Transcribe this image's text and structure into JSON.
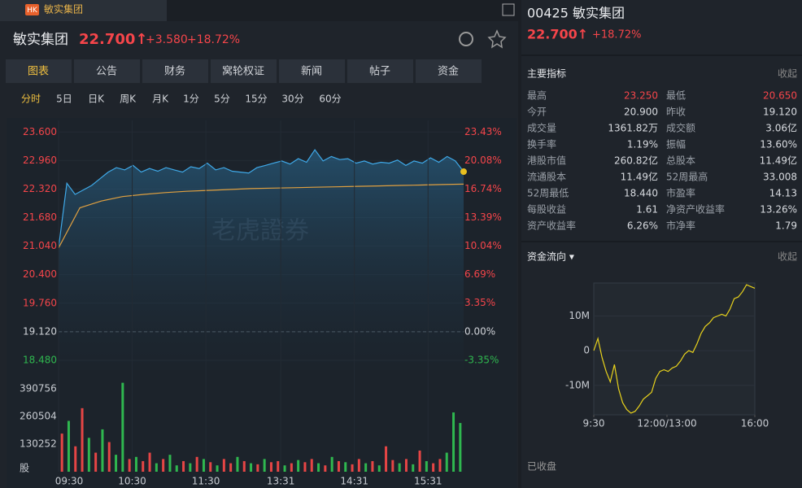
{
  "tab": {
    "badge": "HK",
    "name": "敏实集团"
  },
  "header": {
    "name": "敏实集团",
    "price": "22.700↑",
    "change": "+3.580",
    "percent": "+18.72%"
  },
  "tabs": [
    "图表",
    "公告",
    "财务",
    "窝轮权证",
    "新闻",
    "帖子",
    "资金"
  ],
  "periods": [
    "分时",
    "5日",
    "日K",
    "周K",
    "月K",
    "1分",
    "5分",
    "15分",
    "30分",
    "60分"
  ],
  "chart_data": [
    {
      "type": "line",
      "watermark": "老虎證券",
      "series": [
        {
          "color": "#3fa9e8",
          "values": [
            21.0,
            22.45,
            22.2,
            22.3,
            22.4,
            22.55,
            22.7,
            22.8,
            22.75,
            22.85,
            22.7,
            22.78,
            22.72,
            22.8,
            22.75,
            22.7,
            22.82,
            22.78,
            22.9,
            22.75,
            22.8,
            22.72,
            22.7,
            22.68,
            22.8,
            22.85,
            22.9,
            22.95,
            22.88,
            23.0,
            22.92,
            23.2,
            22.95,
            23.05,
            22.98,
            23.0,
            22.9,
            22.95,
            22.88,
            22.92,
            22.9,
            22.97,
            22.85,
            22.95,
            22.9,
            23.02,
            22.92,
            23.05,
            22.95,
            22.71
          ]
        },
        {
          "color": "#e0a040",
          "values": [
            21.0,
            21.9,
            22.05,
            22.15,
            22.2,
            22.24,
            22.27,
            22.29,
            22.31,
            22.33,
            22.34,
            22.35,
            22.36,
            22.37,
            22.38,
            22.39,
            22.4,
            22.41,
            22.42,
            22.43
          ]
        }
      ],
      "prev_close": 19.12,
      "xlim": [
        0,
        330
      ],
      "xticks": [
        {
          "value": 0,
          "label": "09:30"
        },
        {
          "value": 60,
          "label": "10:30"
        },
        {
          "value": 120,
          "label": "11:30"
        },
        {
          "value": 181,
          "label": "13:31"
        },
        {
          "value": 241,
          "label": "14:31"
        },
        {
          "value": 301,
          "label": "15:31"
        }
      ],
      "ylim": [
        18.26,
        23.86
      ],
      "yticks": [
        {
          "value": 23.6,
          "label": "23.600"
        },
        {
          "value": 22.96,
          "label": "22.960"
        },
        {
          "value": 22.32,
          "label": "22.320"
        },
        {
          "value": 21.68,
          "label": "21.680"
        },
        {
          "value": 21.04,
          "label": "21.040"
        },
        {
          "value": 20.4,
          "label": "20.400"
        },
        {
          "value": 19.76,
          "label": "19.760"
        },
        {
          "value": 19.12,
          "label": "19.120"
        },
        {
          "value": 18.48,
          "label": "18.480"
        }
      ],
      "y2lim": [
        -4.5,
        24.79
      ],
      "y2ticks": [
        {
          "value": 23.43,
          "label": "23.43%"
        },
        {
          "value": 20.08,
          "label": "20.08%"
        },
        {
          "value": 16.74,
          "label": "16.74%"
        },
        {
          "value": 13.39,
          "label": "13.39%"
        },
        {
          "value": 10.04,
          "label": "10.04%"
        },
        {
          "value": 6.69,
          "label": "6.69%"
        },
        {
          "value": 3.35,
          "label": "3.35%"
        },
        {
          "value": 0,
          "label": "0.00%"
        },
        {
          "value": -3.35,
          "label": "-3.35%"
        }
      ]
    },
    {
      "type": "bar",
      "values": [
        180000,
        240000,
        120000,
        300000,
        160000,
        90000,
        200000,
        140000,
        80000,
        420000,
        60000,
        70000,
        50000,
        90000,
        40000,
        60000,
        80000,
        30000,
        50000,
        40000,
        70000,
        60000,
        45000,
        30000,
        60000,
        40000,
        70000,
        50000,
        40000,
        35000,
        60000,
        45000,
        50000,
        30000,
        40000,
        55000,
        45000,
        60000,
        40000,
        30000,
        70000,
        50000,
        45000,
        35000,
        60000,
        40000,
        50000,
        30000,
        120000,
        55000,
        40000,
        60000,
        35000,
        100000,
        50000,
        40000,
        60000,
        90000,
        280000,
        230000
      ],
      "colors": [
        "#e64545",
        "#2fb74f",
        "#e64545",
        "#e64545",
        "#2fb74f",
        "#e64545",
        "#2fb74f",
        "#e64545",
        "#2fb74f",
        "#2fb74f",
        "#e64545",
        "#2fb74f",
        "#e64545",
        "#e64545",
        "#2fb74f",
        "#e64545",
        "#2fb74f",
        "#2fb74f",
        "#e64545",
        "#2fb74f",
        "#e64545",
        "#2fb74f",
        "#e64545",
        "#2fb74f",
        "#e64545",
        "#e64545",
        "#2fb74f",
        "#e64545",
        "#2fb74f",
        "#e64545",
        "#2fb74f",
        "#e64545",
        "#e64545",
        "#2fb74f",
        "#e64545",
        "#2fb74f",
        "#e64545",
        "#e64545",
        "#2fb74f",
        "#e64545",
        "#2fb74f",
        "#e64545",
        "#2fb74f",
        "#e64545",
        "#e64545",
        "#2fb74f",
        "#e64545",
        "#2fb74f",
        "#e64545",
        "#e64545",
        "#2fb74f",
        "#e64545",
        "#2fb74f",
        "#e64545",
        "#2fb74f",
        "#e64545",
        "#e64545",
        "#2fb74f",
        "#2fb74f",
        "#2fb74f"
      ],
      "ylim": [
        0,
        430000
      ],
      "yticks": [
        390756,
        260504,
        130252,
        {
          "value": 0,
          "label": "股"
        }
      ]
    },
    {
      "type": "line",
      "series": [
        {
          "color": "#e8d21c",
          "values": [
            0,
            3500000,
            -2000000,
            -6000000,
            -9000000,
            -4000000,
            -11000000,
            -15000000,
            -17000000,
            -18000000,
            -17500000,
            -16000000,
            -14000000,
            -13000000,
            -12000000,
            -8000000,
            -6000000,
            -5500000,
            -6000000,
            -5000000,
            -4500000,
            -3000000,
            -1000000,
            0,
            -500000,
            2000000,
            5000000,
            7000000,
            8000000,
            9500000,
            10000000,
            10500000,
            10000000,
            12000000,
            15000000,
            15500000,
            17000000,
            19000000,
            18500000,
            18000000
          ]
        }
      ],
      "xlim": [
        0,
        330
      ],
      "xticks": [
        {
          "value": 0,
          "label": "9:30"
        },
        {
          "value": 150,
          "label": "12:00/13:00"
        },
        {
          "value": 330,
          "label": "16:00"
        }
      ],
      "ylim": [
        -18500000,
        19500000
      ],
      "yticks": [
        {
          "value": 10000000,
          "label": "10M"
        },
        0,
        {
          "value": -10000000,
          "label": "-10M"
        }
      ]
    }
  ],
  "quote": {
    "code_name": "00425 敏实集团",
    "price": "22.700↑",
    "percent": "+18.72%"
  },
  "indicators": {
    "title": "主要指标",
    "toggle": "收起",
    "rows": [
      [
        "最高",
        "23.250",
        "最低",
        "20.650"
      ],
      [
        "今开",
        "20.900",
        "昨收",
        "19.120"
      ],
      [
        "成交量",
        "1361.82万",
        "成交额",
        "3.06亿"
      ],
      [
        "换手率",
        "1.19%",
        "振幅",
        "13.60%"
      ],
      [
        "港股市值",
        "260.82亿",
        "总股本",
        "11.49亿"
      ],
      [
        "流通股本",
        "11.49亿",
        "52周最高",
        "33.008"
      ],
      [
        "52周最低",
        "18.440",
        "市盈率",
        "14.13"
      ],
      [
        "每股收益",
        "1.61",
        "净资产收益率",
        "13.26%"
      ],
      [
        "资产收益率",
        "6.26%",
        "市净率",
        "1.79"
      ]
    ]
  },
  "flow": {
    "title": "资金流向 ▾",
    "toggle": "收起"
  },
  "status": "已收盘"
}
